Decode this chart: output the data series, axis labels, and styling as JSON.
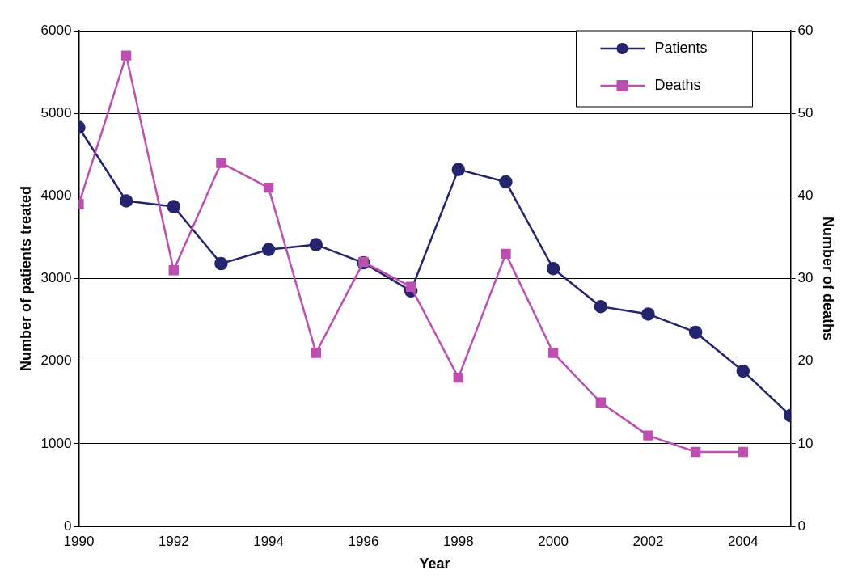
{
  "chart_data": {
    "type": "line",
    "xlabel": "Year",
    "ylabel": "Number of patients treated",
    "y2label": "Number of deaths",
    "x": [
      1990,
      1991,
      1992,
      1993,
      1994,
      1995,
      1996,
      1997,
      1998,
      1999,
      2000,
      2001,
      2002,
      2003,
      2004,
      2005
    ],
    "series": [
      {
        "name": "Patients",
        "color": "#25246e",
        "marker": "circle",
        "values": [
          4830,
          3940,
          3870,
          3180,
          3350,
          3410,
          3190,
          2850,
          4320,
          4170,
          3120,
          2660,
          2570,
          2350,
          1880,
          1340
        ]
      },
      {
        "name": "Deaths",
        "color": "#bd4fb0",
        "marker": "square",
        "axis": "y2",
        "values": [
          39,
          57,
          31,
          44,
          41,
          21,
          32,
          29,
          18,
          33,
          21,
          15,
          11,
          9,
          9,
          null
        ]
      }
    ],
    "xlim": [
      1990,
      2005
    ],
    "xticks": [
      1990,
      1992,
      1994,
      1996,
      1998,
      2000,
      2002,
      2004
    ],
    "ylim": [
      0,
      6000
    ],
    "yticks": [
      0,
      1000,
      2000,
      3000,
      4000,
      5000,
      6000
    ],
    "y2lim": [
      0,
      60
    ],
    "y2ticks": [
      0,
      10,
      20,
      30,
      40,
      50,
      60
    ],
    "grid": "y",
    "legend": "top right",
    "line_style": "solid"
  }
}
